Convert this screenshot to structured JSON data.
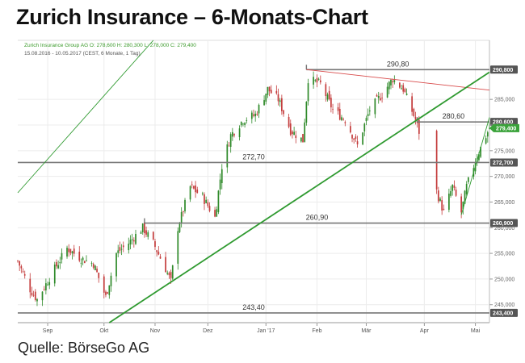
{
  "header": {
    "title": "Zurich Insurance – 6-Monats-Chart"
  },
  "footer": {
    "source": "Quelle: BörseGo AG"
  },
  "legend": {
    "line1": "Zurich Insurance Group AG O: 278,600 H: 280,300 L: 278,000 C: 279,400",
    "line2": "15.08.2016 - 10.05.2017 (CEST, 6 Monate, 1 Tag)"
  },
  "colors": {
    "up": "#2f8a2a",
    "down": "#c43c3c",
    "trend": "#2f9a30",
    "resistance": "#d84a4a",
    "level": "#777777",
    "badge": "#555555",
    "last": "#3aa23a"
  },
  "chart_data": {
    "type": "candlestick",
    "ylim": [
      241500,
      296500
    ],
    "y_ticks": [
      245000,
      250000,
      255000,
      260000,
      265000,
      270000,
      275000,
      280000,
      285000
    ],
    "y_tick_labels": [
      "245,000",
      "250,000",
      "255,000",
      "260,000",
      "265,000",
      "270,000",
      "275,000",
      "280,000",
      "285,000"
    ],
    "x_labels": [
      "Sep",
      "Okt",
      "Nov",
      "Dez",
      "Jan '17",
      "Feb",
      "Mär",
      "Apr",
      "Mai"
    ],
    "x_label_dates": [
      "2016-09-01",
      "2016-10-03",
      "2016-11-01",
      "2016-12-01",
      "2017-01-03",
      "2017-02-01",
      "2017-03-01",
      "2017-04-03",
      "2017-05-02"
    ],
    "start_date": "2016-08-15",
    "end_date": "2017-05-10",
    "last_price": {
      "value": 279400,
      "label": "279,400"
    },
    "horizontal_levels": [
      {
        "value": 290800,
        "label": "290,80",
        "badge": "290,800",
        "start_date": "2017-01-26"
      },
      {
        "value": 280600,
        "label": "280,60",
        "badge": "280,600",
        "start_date": "2017-03-30"
      },
      {
        "value": 272700,
        "label": "272,70",
        "badge": "272,700",
        "start_date": "2016-08-15"
      },
      {
        "value": 260900,
        "label": "260,90",
        "badge": "260,900",
        "start_date": "2016-10-26"
      },
      {
        "value": 243400,
        "label": "243,40",
        "badge": "243,400",
        "start_date": "2016-08-15"
      }
    ],
    "trendlines": [
      {
        "name": "resistance",
        "from": [
          "2017-01-26",
          290800
        ],
        "to": [
          "2017-05-10",
          286800
        ]
      },
      {
        "name": "support",
        "from": [
          "2016-10-06",
          241500
        ],
        "to": [
          "2017-05-10",
          290300
        ]
      },
      {
        "name": "support-thin",
        "from": [
          "2016-08-15",
          266800
        ],
        "to": [
          "2016-10-31",
          296500
        ]
      },
      {
        "name": "short-term",
        "from": [
          "2017-04-24",
          262500
        ],
        "to": [
          "2017-05-10",
          281500
        ]
      }
    ],
    "anchor_points": [
      {
        "date": "2016-08-15",
        "close": 253500
      },
      {
        "date": "2016-08-22",
        "close": 248000
      },
      {
        "date": "2016-08-26",
        "close": 246000
      },
      {
        "date": "2016-09-05",
        "close": 252000
      },
      {
        "date": "2016-09-12",
        "close": 256000
      },
      {
        "date": "2016-09-20",
        "close": 254000
      },
      {
        "date": "2016-09-27",
        "close": 253000
      },
      {
        "date": "2016-10-04",
        "close": 246500
      },
      {
        "date": "2016-10-10",
        "close": 255000
      },
      {
        "date": "2016-10-17",
        "close": 257000
      },
      {
        "date": "2016-10-25",
        "close": 260000
      },
      {
        "date": "2016-10-31",
        "close": 257000
      },
      {
        "date": "2016-11-07",
        "close": 252000
      },
      {
        "date": "2016-11-10",
        "close": 249500
      },
      {
        "date": "2016-11-14",
        "close": 260000
      },
      {
        "date": "2016-11-21",
        "close": 268000
      },
      {
        "date": "2016-11-28",
        "close": 266000
      },
      {
        "date": "2016-12-05",
        "close": 262000
      },
      {
        "date": "2016-12-09",
        "close": 272000
      },
      {
        "date": "2016-12-14",
        "close": 278000
      },
      {
        "date": "2016-12-21",
        "close": 281000
      },
      {
        "date": "2016-12-28",
        "close": 282000
      },
      {
        "date": "2017-01-04",
        "close": 287000
      },
      {
        "date": "2017-01-10",
        "close": 285000
      },
      {
        "date": "2017-01-17",
        "close": 279000
      },
      {
        "date": "2017-01-24",
        "close": 277000
      },
      {
        "date": "2017-01-27",
        "close": 289000
      },
      {
        "date": "2017-02-03",
        "close": 288000
      },
      {
        "date": "2017-02-10",
        "close": 283000
      },
      {
        "date": "2017-02-17",
        "close": 281000
      },
      {
        "date": "2017-02-24",
        "close": 276000
      },
      {
        "date": "2017-03-03",
        "close": 283000
      },
      {
        "date": "2017-03-10",
        "close": 286000
      },
      {
        "date": "2017-03-16",
        "close": 289000
      },
      {
        "date": "2017-03-22",
        "close": 287000
      },
      {
        "date": "2017-03-29",
        "close": 281000
      },
      {
        "date": "2017-04-11",
        "close": 266000
      },
      {
        "date": "2017-04-14",
        "close": 263000
      },
      {
        "date": "2017-04-19",
        "close": 268000
      },
      {
        "date": "2017-04-24",
        "close": 263000
      },
      {
        "date": "2017-04-27",
        "close": 268000
      },
      {
        "date": "2017-05-03",
        "close": 274000
      },
      {
        "date": "2017-05-10",
        "close": 279400
      }
    ]
  }
}
